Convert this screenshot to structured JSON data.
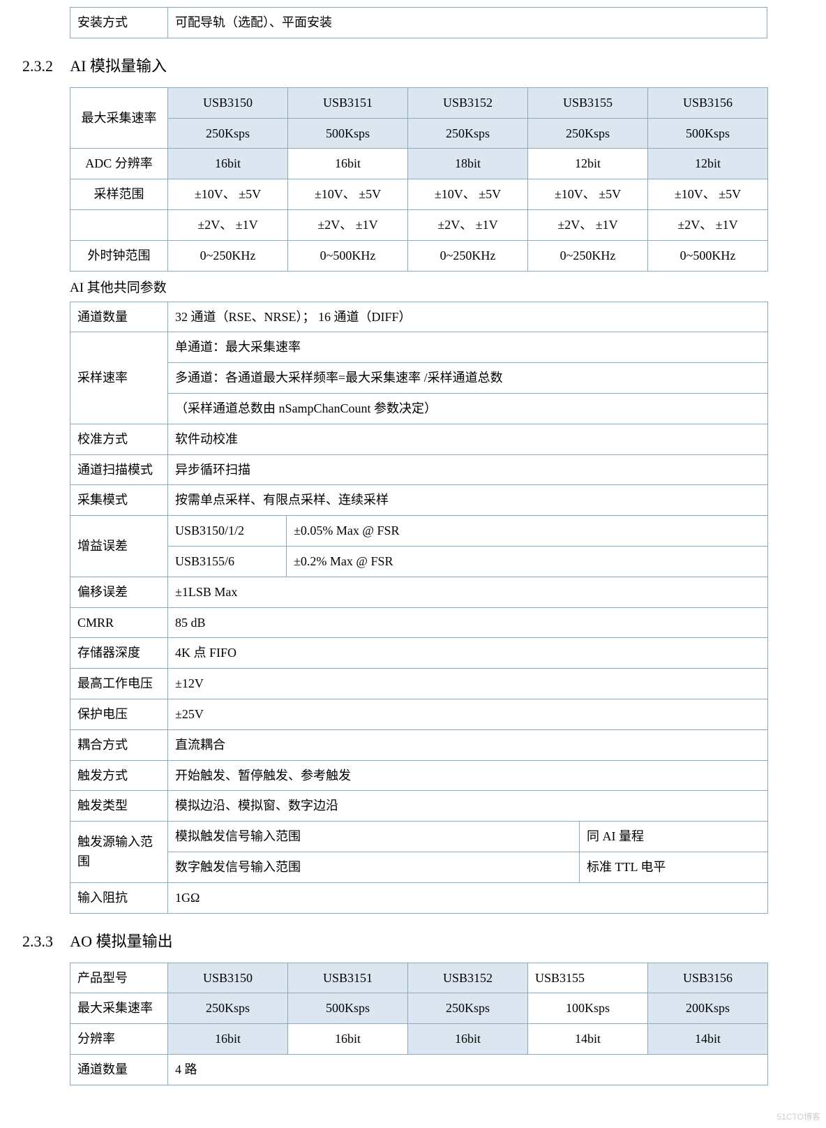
{
  "colors": {
    "border": "#8aa8c0",
    "header_bg": "#dce6f0",
    "text": "#000000",
    "page_bg": "#ffffff"
  },
  "top_table": {
    "label": "安装方式",
    "value": "可配导轨（选配）、平面安装"
  },
  "section232": {
    "number": "2.3.2",
    "title": "AI 模拟量输入"
  },
  "ai_table": {
    "row1_label": "最大采集速率",
    "models": [
      "USB3150",
      "USB3151",
      "USB3152",
      "USB3155",
      "USB3156"
    ],
    "rates": [
      "250Ksps",
      "500Ksps",
      "250Ksps",
      "250Ksps",
      "500Ksps"
    ],
    "adc_label": "ADC 分辨率",
    "adc": [
      "16bit",
      "16bit",
      "18bit",
      "12bit",
      "12bit"
    ],
    "range_label": "采样范围",
    "range_line1": [
      "±10V、 ±5V",
      "±10V、 ±5V",
      "±10V、 ±5V",
      "±10V、 ±5V",
      "±10V、 ±5V"
    ],
    "range_line2": [
      "±2V、 ±1V",
      "±2V、 ±1V",
      "±2V、 ±1V",
      "±2V、 ±1V",
      "±2V、 ±1V"
    ],
    "clk_label": "外时钟范围",
    "clk": [
      "0~250KHz",
      "0~500KHz",
      "0~250KHz",
      "0~250KHz",
      "0~500KHz"
    ]
  },
  "ai_subtitle": "AI 其他共同参数",
  "ai_common": {
    "channels_label": "通道数量",
    "channels_value": "32 通道（RSE、NRSE）； 16 通道（DIFF）",
    "rate_label": "采样速率",
    "rate_line1": "单通道：最大采集速率",
    "rate_line2": "多通道：各通道最大采样频率=最大采集速率 /采样通道总数",
    "rate_line3": "（采样通道总数由 nSampChanCount 参数决定）",
    "calib_label": "校准方式",
    "calib_value": "软件动校准",
    "scan_label": "通道扫描模式",
    "scan_value": "异步循环扫描",
    "mode_label": "采集模式",
    "mode_value": "按需单点采样、有限点采样、连续采样",
    "gain_label": "增益误差",
    "gain_a1": "USB3150/1/2",
    "gain_a2": "±0.05% Max @ FSR",
    "gain_b1": "USB3155/6",
    "gain_b2": "±0.2% Max @ FSR",
    "offset_label": "偏移误差",
    "offset_value": "±1LSB Max",
    "cmrr_label": "CMRR",
    "cmrr_value": "85 dB",
    "fifo_label": "存储器深度",
    "fifo_value": "4K  点 FIFO",
    "vmax_label": "最高工作电压",
    "vmax_value": "±12V",
    "vprot_label": "保护电压",
    "vprot_value": "±25V",
    "couple_label": "耦合方式",
    "couple_value": "直流耦合",
    "trig_label": "触发方式",
    "trig_value": "开始触发、暂停触发、参考触发",
    "ttype_label": "触发类型",
    "ttype_value": "模拟边沿、模拟窗、数字边沿",
    "tsrc_label": "触发源输入范围",
    "tsrc_a1": "模拟触发信号输入范围",
    "tsrc_a2": "同 AI 量程",
    "tsrc_b1": "数字触发信号输入范围",
    "tsrc_b2": "标准 TTL 电平",
    "imp_label": "输入阻抗",
    "imp_value": "1GΩ"
  },
  "section233": {
    "number": "2.3.3",
    "title": "AO 模拟量输出"
  },
  "ao_table": {
    "model_label": "产品型号",
    "models": [
      "USB3150",
      "USB3151",
      "USB3152",
      "USB3155",
      "USB3156"
    ],
    "rate_label": "最大采集速率",
    "rates": [
      "250Ksps",
      "500Ksps",
      "250Ksps",
      "100Ksps",
      "200Ksps"
    ],
    "res_label": "分辨率",
    "res": [
      "16bit",
      "16bit",
      "16bit",
      "14bit",
      "14bit"
    ],
    "ch_label": "通道数量",
    "ch_value": "4 路"
  },
  "watermark": "51CTO博客"
}
